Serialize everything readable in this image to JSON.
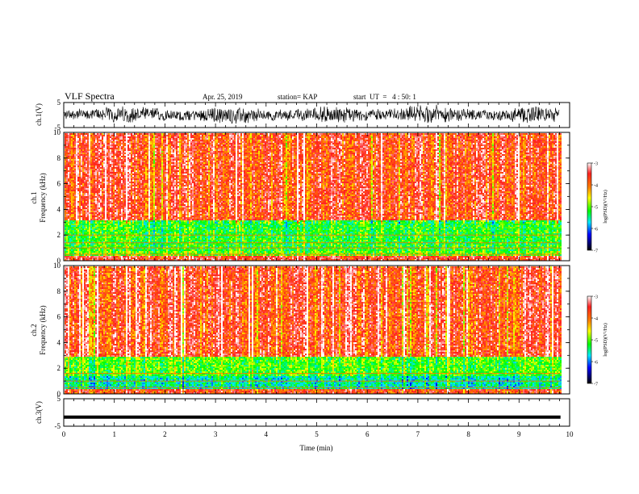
{
  "header": {
    "title": "VLF Spectra",
    "date": "Apr. 25, 2019",
    "station": "station= KAP",
    "start": "start  UT  =   4 : 50: 1"
  },
  "colorbar": {
    "label": "log(PSD)(V²/Hz)",
    "ticks": [
      "-3",
      "-4",
      "-5",
      "-6",
      "-7"
    ],
    "range": [
      -7,
      -3
    ]
  },
  "chart_data": [
    {
      "type": "line",
      "panel": "ch1-waveform",
      "ylabel": "ch.1(V)",
      "ylim": [
        -5,
        5
      ],
      "yticks": [
        "5",
        "-5"
      ],
      "xlim": [
        0,
        10
      ],
      "x_extent_min": 9.8,
      "description_series": "dense noise waveform, amplitude roughly -4 to +4 V"
    },
    {
      "type": "heatmap",
      "panel": "ch1-spectrogram",
      "ylabel": "ch.1\nFrequency (kHz)",
      "ylim": [
        0,
        10
      ],
      "yticks": [
        "0",
        "2",
        "4",
        "6",
        "8",
        "10"
      ],
      "xlim": [
        0,
        10
      ],
      "bands": [
        {
          "from_khz": 0.0,
          "to_khz": 0.4,
          "level": -3.6
        },
        {
          "from_khz": 0.4,
          "to_khz": 0.8,
          "level": -5.0
        },
        {
          "from_khz": 0.8,
          "to_khz": 3.2,
          "level": -5.2
        },
        {
          "from_khz": 3.2,
          "to_khz": 10.0,
          "level": -3.7
        }
      ],
      "lines_khz": [
        0.5,
        1.0,
        1.4,
        2.0
      ]
    },
    {
      "type": "heatmap",
      "panel": "ch2-spectrogram",
      "ylabel": "ch.2\nFrequency (kHz)",
      "ylim": [
        0,
        10
      ],
      "yticks": [
        "0",
        "2",
        "4",
        "6",
        "8",
        "10"
      ],
      "xlim": [
        0,
        10
      ],
      "bands": [
        {
          "from_khz": 0.0,
          "to_khz": 0.4,
          "level": -3.8
        },
        {
          "from_khz": 0.4,
          "to_khz": 1.5,
          "level": -5.6
        },
        {
          "from_khz": 1.5,
          "to_khz": 3.0,
          "level": -5.1
        },
        {
          "from_khz": 3.0,
          "to_khz": 10.0,
          "level": -3.7
        }
      ],
      "lines_khz": [
        0.5,
        1.0,
        1.6
      ]
    },
    {
      "type": "line",
      "panel": "ch3-waveform",
      "ylabel": "ch.3(V)",
      "ylim": [
        -5,
        5
      ],
      "yticks": [
        "5",
        "-5"
      ],
      "xlim": [
        0,
        10
      ],
      "constant_value": -1.7,
      "xlabel": "Time (min)",
      "xticks": [
        "0",
        "1",
        "2",
        "3",
        "4",
        "5",
        "6",
        "7",
        "8",
        "9",
        "10"
      ]
    }
  ]
}
